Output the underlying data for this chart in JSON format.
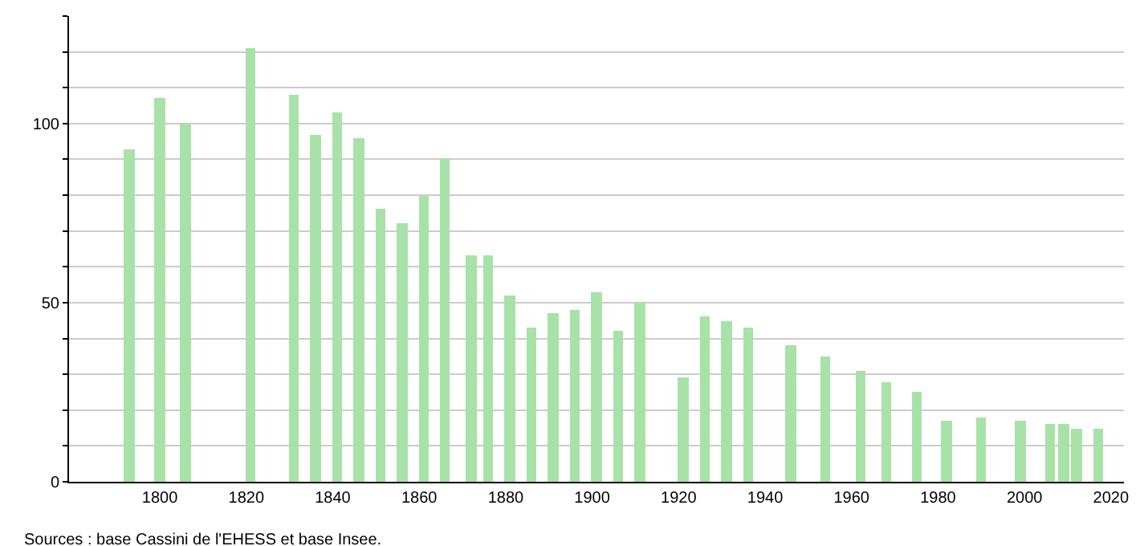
{
  "chart_data": {
    "type": "bar",
    "x": [
      1793,
      1800,
      1806,
      1821,
      1831,
      1836,
      1841,
      1846,
      1851,
      1856,
      1861,
      1866,
      1872,
      1876,
      1881,
      1886,
      1891,
      1896,
      1901,
      1906,
      1911,
      1921,
      1926,
      1931,
      1936,
      1946,
      1954,
      1962,
      1968,
      1975,
      1982,
      1990,
      1999,
      2006,
      2009,
      2012,
      2017
    ],
    "values": [
      93,
      107,
      100,
      121,
      108,
      97,
      103,
      96,
      76,
      72,
      80,
      90,
      63,
      63,
      52,
      43,
      47,
      48,
      53,
      42,
      50,
      29,
      46,
      45,
      43,
      38,
      35,
      31,
      28,
      25,
      17,
      18,
      17,
      16,
      16,
      15,
      15
    ],
    "color": "#a8e2a8",
    "xlim": [
      1779,
      2023
    ],
    "xticks": [
      1800,
      1820,
      1840,
      1860,
      1880,
      1900,
      1920,
      1940,
      1960,
      1980,
      2000,
      2020
    ],
    "ylim": [
      0,
      130
    ],
    "yticks": [
      0,
      {
        "value": 10,
        "label": null
      },
      {
        "value": 20,
        "label": null
      },
      {
        "value": 30,
        "label": null
      },
      {
        "value": 40,
        "label": null
      },
      50,
      {
        "value": 60,
        "label": null
      },
      {
        "value": 70,
        "label": null
      },
      {
        "value": 80,
        "label": null
      },
      {
        "value": 90,
        "label": null
      },
      100,
      {
        "value": 110,
        "label": null
      },
      {
        "value": 120,
        "label": null
      },
      {
        "value": 130,
        "label": null
      }
    ],
    "grid": "y",
    "annotations": [
      "Sources : base Cassini de l'EHESS et base Insee."
    ]
  }
}
